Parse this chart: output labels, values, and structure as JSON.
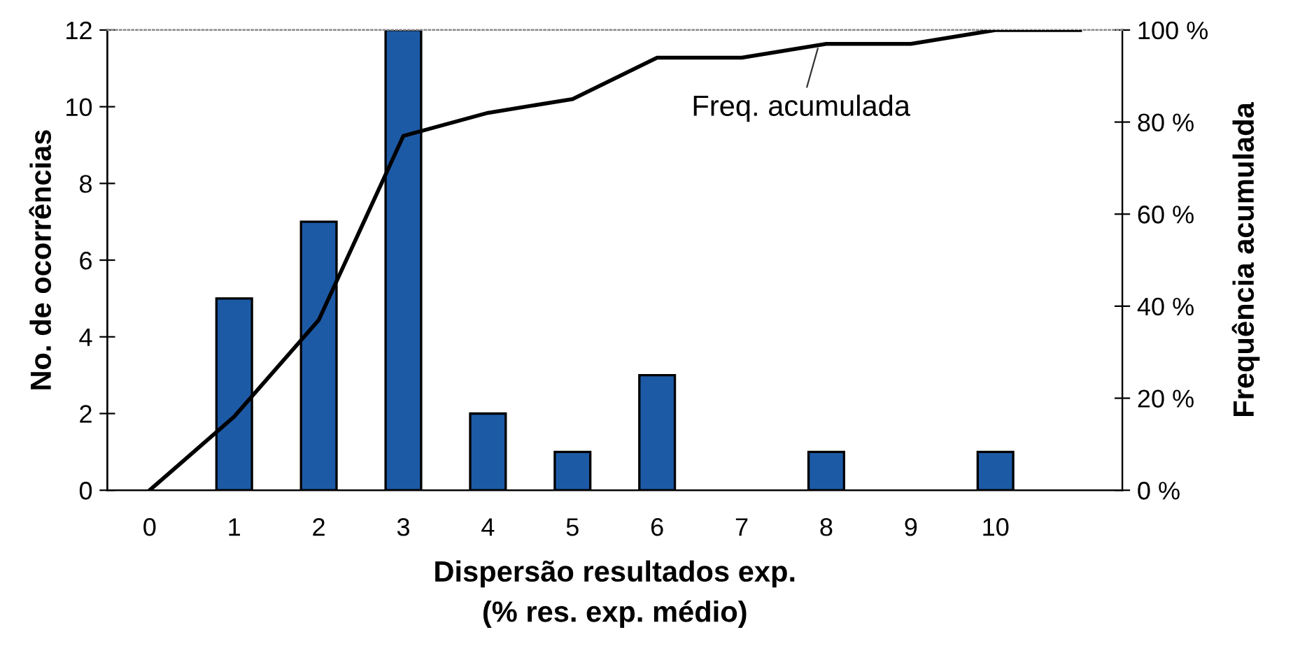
{
  "chart_data": {
    "type": "bar",
    "categories": [
      "0",
      "1",
      "2",
      "3",
      "4",
      "5",
      "6",
      "7",
      "8",
      "9",
      "10",
      null
    ],
    "xlabel": "Dispersão resultados exp.\n(% res. exp. médio)",
    "ylabel": "No. de ocorrências",
    "y2label": "Frequência acumulada",
    "series": [
      {
        "color": "#1c5aa6",
        "values": [
          0,
          5,
          7,
          12,
          2,
          1,
          3,
          0,
          1,
          0,
          1,
          0
        ]
      },
      {
        "type": "line",
        "axis": "y2",
        "color": "#000000",
        "name": "Freq. acumulada",
        "values": [
          0,
          16,
          37,
          77,
          82,
          85,
          94,
          94,
          97,
          97,
          100,
          100
        ]
      }
    ],
    "ylim": [
      0,
      12
    ],
    "yticks": [
      0,
      2,
      4,
      6,
      8,
      10,
      12
    ],
    "y2lim": [
      0,
      100
    ],
    "y2ticks": [
      {
        "value": 0,
        "label": "0 %"
      },
      {
        "value": 20,
        "label": "20 %"
      },
      {
        "value": 40,
        "label": "40 %"
      },
      {
        "value": 60,
        "label": "60 %"
      },
      {
        "value": 80,
        "label": "80 %"
      },
      {
        "value": 100,
        "label": "100 %"
      }
    ],
    "grid": false,
    "legend": false,
    "marker": "none",
    "line_style": "solid"
  }
}
